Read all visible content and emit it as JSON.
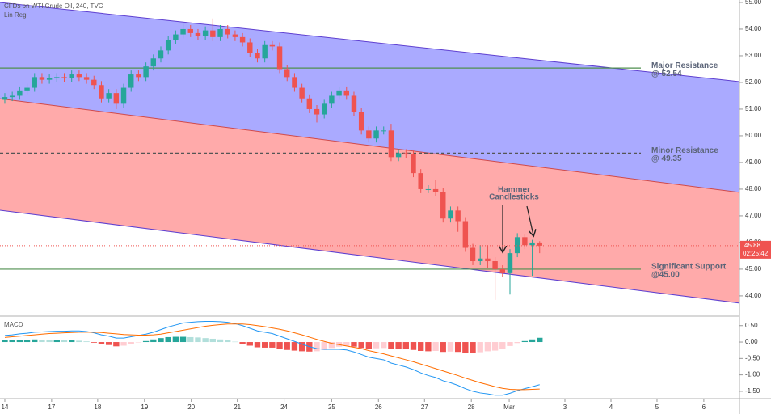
{
  "chart_data": {
    "type": "candlestick",
    "title": "CFDs on WTI Crude Oil, 240, TVC",
    "indicator": "Lin Reg",
    "panel_title": "MACD",
    "up_color": "#26a69a",
    "down_color": "#ef5350",
    "xlim": [
      -0.65,
      98.9
    ],
    "xticks": [
      {
        "value": 0,
        "label": "14"
      },
      {
        "value": 6.3,
        "label": "17"
      },
      {
        "value": 12.5,
        "label": "18"
      },
      {
        "value": 18.8,
        "label": "19"
      },
      {
        "value": 25.1,
        "label": "20"
      },
      {
        "value": 31.3,
        "label": "21"
      },
      {
        "value": 37.6,
        "label": "24"
      },
      {
        "value": 44,
        "label": "25"
      },
      {
        "value": 50.3,
        "label": "26"
      },
      {
        "value": 56.5,
        "label": "27"
      },
      {
        "value": 62.8,
        "label": "28"
      },
      {
        "value": 67.9,
        "label": "Mar"
      },
      {
        "value": 75.4,
        "label": "3"
      },
      {
        "value": 81.6,
        "label": "4"
      },
      {
        "value": 87.8,
        "label": "5"
      },
      {
        "value": 94.1,
        "label": "6"
      }
    ],
    "ylim": [
      43.27,
      55.09
    ],
    "yticks": [
      {
        "value": 44,
        "label": "44.00"
      },
      {
        "value": 45,
        "label": "45.00"
      },
      {
        "value": 46,
        "label": "46.00"
      },
      {
        "value": 47,
        "label": "47.00"
      },
      {
        "value": 48,
        "label": "48.00"
      },
      {
        "value": 49,
        "label": "49.00"
      },
      {
        "value": 50,
        "label": "50.00"
      },
      {
        "value": 51,
        "label": "51.00"
      },
      {
        "value": 52,
        "label": "52.00"
      },
      {
        "value": 53,
        "label": "53.00"
      },
      {
        "value": 54,
        "label": "54.00"
      },
      {
        "value": 55,
        "label": "55.00"
      }
    ],
    "open": [
      51.35,
      51.45,
      51.5,
      51.7,
      51.8,
      52.2,
      52.1,
      52.15,
      52.2,
      52.15,
      52.3,
      52.2,
      52.1,
      51.9,
      51.4,
      51.6,
      51.2,
      51.8,
      52.3,
      52.2,
      52.6,
      52.9,
      53.2,
      53.6,
      53.8,
      54,
      53.85,
      53.75,
      53.95,
      53.7,
      54,
      53.8,
      53.7,
      53.5,
      53.1,
      52.9,
      53.4,
      53.35,
      52.5,
      52.2,
      51.8,
      51.4,
      51,
      50.8,
      51.2,
      51.5,
      51.7,
      51.5,
      50.9,
      50.2,
      49.9,
      50.2,
      50.2,
      49.2,
      49.35,
      49.3,
      48.6,
      48,
      48,
      47.9,
      46.9,
      47.2,
      46.8,
      45.8,
      45.3,
      45.4,
      45.3,
      45,
      44.85,
      45.6,
      46.2,
      45.9,
      46
    ],
    "high": [
      51.6,
      51.65,
      51.85,
      51.95,
      52.35,
      52.35,
      52.3,
      52.35,
      52.35,
      52.45,
      52.45,
      52.35,
      52.25,
      52.05,
      51.75,
      51.75,
      51.95,
      52.45,
      52.45,
      52.75,
      53.05,
      53.35,
      53.75,
      53.95,
      54.2,
      54.15,
      54,
      54.1,
      54.4,
      54.15,
      54.15,
      53.95,
      53.85,
      53.65,
      53.25,
      53.55,
      53.55,
      53.5,
      52.65,
      52.35,
      51.95,
      51.55,
      51.15,
      51.35,
      51.65,
      51.85,
      51.85,
      51.65,
      51.05,
      50.35,
      50.35,
      50.35,
      50.45,
      49.5,
      49.5,
      49.45,
      48.75,
      48.15,
      48.35,
      48.05,
      47.35,
      47.35,
      46.95,
      45.95,
      45.9,
      45.9,
      45.45,
      45.15,
      45.75,
      46.35,
      46.3,
      46.1,
      46.05
    ],
    "low": [
      51.2,
      51.3,
      51.35,
      51.55,
      51.65,
      51.95,
      51.95,
      52,
      52,
      52,
      52.05,
      51.95,
      51.75,
      51.25,
      51.25,
      51,
      51.05,
      51.65,
      52.05,
      52.05,
      52.45,
      52.75,
      53.05,
      53.45,
      53.65,
      53.7,
      53.6,
      53.6,
      53.55,
      53.55,
      53.65,
      53.55,
      53.35,
      52.95,
      52.75,
      52.75,
      53.2,
      52.35,
      52.05,
      51.65,
      51.25,
      50.85,
      50.5,
      50.65,
      51.05,
      51.35,
      51.35,
      50.75,
      50.05,
      49.75,
      49.75,
      50.05,
      49.05,
      49.05,
      49.15,
      48.45,
      47.85,
      47.85,
      47.75,
      46.75,
      46.75,
      46.4,
      45.65,
      45.15,
      45.15,
      45.05,
      43.85,
      44.7,
      44.05,
      45.45,
      45.75,
      44.75,
      45.6
    ],
    "close": [
      51.45,
      51.5,
      51.7,
      51.8,
      52.2,
      52.1,
      52.15,
      52.2,
      52.15,
      52.3,
      52.2,
      52.1,
      51.9,
      51.4,
      51.6,
      51.2,
      51.8,
      52.3,
      52.2,
      52.6,
      52.9,
      53.2,
      53.6,
      53.8,
      54,
      53.85,
      53.75,
      53.95,
      53.7,
      54,
      53.8,
      53.7,
      53.5,
      53.1,
      52.9,
      53.4,
      53.35,
      52.5,
      52.2,
      51.8,
      51.4,
      51,
      50.8,
      51.2,
      51.5,
      51.7,
      51.5,
      50.9,
      50.2,
      49.9,
      50.2,
      50.2,
      49.2,
      49.35,
      49.3,
      48.6,
      48,
      48,
      47.9,
      46.9,
      47.2,
      46.8,
      45.8,
      45.3,
      45.4,
      45.3,
      45,
      44.85,
      45.6,
      46.2,
      45.9,
      46,
      45.88
    ],
    "channel": {
      "upper": [
        [
          -0.65,
          55.0
        ],
        [
          98.9,
          52.03
        ]
      ],
      "middle": [
        [
          -0.65,
          51.39
        ],
        [
          98.9,
          47.88
        ]
      ],
      "lower": [
        [
          -0.65,
          47.21
        ],
        [
          98.9,
          43.73
        ]
      ],
      "upper_color": "#aaaaff",
      "lower_color": "#ffaaaa",
      "edge_color": "#5e3fd0",
      "mid_color": "#d04a4a"
    },
    "levels": [
      {
        "value": 52.54,
        "label": "Major Resistance",
        "sub": "@ 52.54",
        "color": "#4f8f4f",
        "dash": false
      },
      {
        "value": 49.35,
        "label": "Minor Resistance",
        "sub": "@ 49.35",
        "color": "#555555",
        "dash": true
      },
      {
        "value": 45,
        "label": "Significant Support",
        "sub": "@45.00",
        "color": "#4f8f4f",
        "dash": false
      }
    ],
    "callout": [
      "Hammer",
      "Candlesticks"
    ],
    "last_price": 45.88,
    "countdown": "02:25:42",
    "macd": {
      "ylim": [
        -1.65,
        0.74
      ],
      "yticks": [
        {
          "value": 0.5,
          "label": "0.50"
        },
        {
          "value": 0,
          "label": "0.00"
        },
        {
          "value": -0.5,
          "label": "-0.50"
        },
        {
          "value": -1,
          "label": "-1.00"
        },
        {
          "value": -1.5,
          "label": "-1.50"
        }
      ],
      "histogram": [
        0.06,
        0.06,
        0.07,
        0.07,
        0.08,
        0.07,
        0.06,
        0.06,
        0.05,
        0.05,
        0.04,
        0.02,
        -0.02,
        -0.07,
        -0.09,
        -0.13,
        -0.11,
        -0.06,
        -0.01,
        0.03,
        0.08,
        0.12,
        0.15,
        0.16,
        0.16,
        0.15,
        0.14,
        0.12,
        0.1,
        0.08,
        0.05,
        0.01,
        -0.05,
        -0.11,
        -0.16,
        -0.17,
        -0.17,
        -0.21,
        -0.24,
        -0.26,
        -0.28,
        -0.29,
        -0.28,
        -0.24,
        -0.18,
        -0.14,
        -0.12,
        -0.14,
        -0.18,
        -0.2,
        -0.19,
        -0.18,
        -0.22,
        -0.22,
        -0.22,
        -0.24,
        -0.27,
        -0.28,
        -0.27,
        -0.3,
        -0.29,
        -0.3,
        -0.32,
        -0.33,
        -0.31,
        -0.28,
        -0.26,
        -0.21,
        -0.12,
        -0.03,
        0.03,
        0.08,
        0.13
      ],
      "macd_line": [
        0.2,
        0.22,
        0.25,
        0.27,
        0.3,
        0.31,
        0.32,
        0.33,
        0.33,
        0.34,
        0.34,
        0.32,
        0.28,
        0.22,
        0.18,
        0.12,
        0.12,
        0.16,
        0.2,
        0.24,
        0.3,
        0.38,
        0.46,
        0.52,
        0.58,
        0.6,
        0.62,
        0.63,
        0.63,
        0.62,
        0.6,
        0.56,
        0.5,
        0.42,
        0.34,
        0.3,
        0.26,
        0.18,
        0.1,
        0.02,
        -0.06,
        -0.14,
        -0.2,
        -0.22,
        -0.22,
        -0.22,
        -0.24,
        -0.3,
        -0.38,
        -0.46,
        -0.5,
        -0.54,
        -0.64,
        -0.7,
        -0.76,
        -0.84,
        -0.94,
        -1.02,
        -1.08,
        -1.18,
        -1.24,
        -1.32,
        -1.42,
        -1.5,
        -1.55,
        -1.58,
        -1.62,
        -1.62,
        -1.56,
        -1.48,
        -1.42,
        -1.36,
        -1.3
      ],
      "signal_line": [
        0.14,
        0.16,
        0.18,
        0.2,
        0.22,
        0.24,
        0.26,
        0.27,
        0.28,
        0.29,
        0.3,
        0.3,
        0.3,
        0.29,
        0.27,
        0.25,
        0.23,
        0.22,
        0.21,
        0.21,
        0.22,
        0.24,
        0.28,
        0.32,
        0.36,
        0.4,
        0.44,
        0.48,
        0.51,
        0.53,
        0.55,
        0.55,
        0.55,
        0.53,
        0.5,
        0.47,
        0.43,
        0.39,
        0.34,
        0.28,
        0.22,
        0.15,
        0.08,
        0.02,
        -0.04,
        -0.08,
        -0.12,
        -0.16,
        -0.2,
        -0.26,
        -0.31,
        -0.36,
        -0.42,
        -0.48,
        -0.54,
        -0.6,
        -0.67,
        -0.74,
        -0.81,
        -0.88,
        -0.95,
        -1.02,
        -1.1,
        -1.17,
        -1.24,
        -1.3,
        -1.36,
        -1.41,
        -1.44,
        -1.45,
        -1.45,
        -1.44,
        -1.43
      ],
      "macd_color": "#2196f3",
      "signal_color": "#ff6d00",
      "hist_up": "#26a69a",
      "hist_up_light": "#b2dfdb",
      "hist_down": "#ef5350",
      "hist_down_light": "#ffcdd2"
    }
  }
}
